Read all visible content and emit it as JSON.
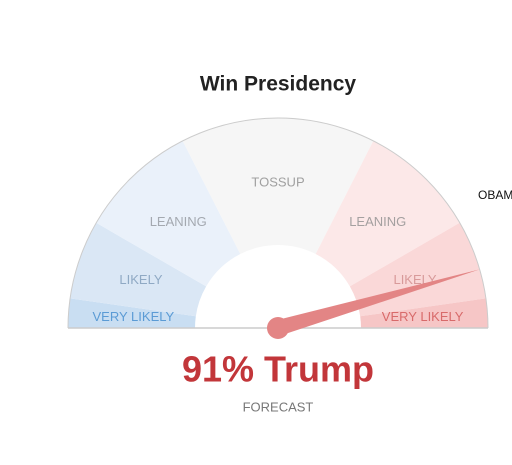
{
  "chart_data": {
    "type": "gauge",
    "title": "Win Presidency",
    "lim": [
      0,
      100
    ],
    "zones": [
      {
        "label": "VERY LIKELY",
        "range": [
          0,
          4.5
        ],
        "color": "#c9def2",
        "label_color": "#5b9bd5"
      },
      {
        "label": "LIKELY",
        "range": [
          4.5,
          16.7
        ],
        "color": "#dae7f5",
        "label_color": "#8fa9c4"
      },
      {
        "label": "LEANING",
        "range": [
          16.7,
          35
        ],
        "color": "#eaf1fa",
        "label_color": "#a4a9b0"
      },
      {
        "label": "TOSSUP",
        "range": [
          35,
          65
        ],
        "color": "#f6f6f6",
        "label_color": "#a0a0a0"
      },
      {
        "label": "LEANING",
        "range": [
          65,
          83.3
        ],
        "color": "#fce8e8",
        "label_color": "#a4a0a0"
      },
      {
        "label": "LIKELY",
        "range": [
          83.3,
          95.5
        ],
        "color": "#fad8d8",
        "label_color": "#d89a9a"
      },
      {
        "label": "VERY LIKELY",
        "range": [
          95.5,
          100
        ],
        "color": "#f6c6c6",
        "label_color": "#d86a6a"
      }
    ],
    "values": [
      91
    ],
    "value_labels": [
      "91% Trump"
    ],
    "color": "#e38585",
    "label_color": "#c2363a",
    "subtitle": "FORECAST",
    "annotation": "OBAM"
  }
}
